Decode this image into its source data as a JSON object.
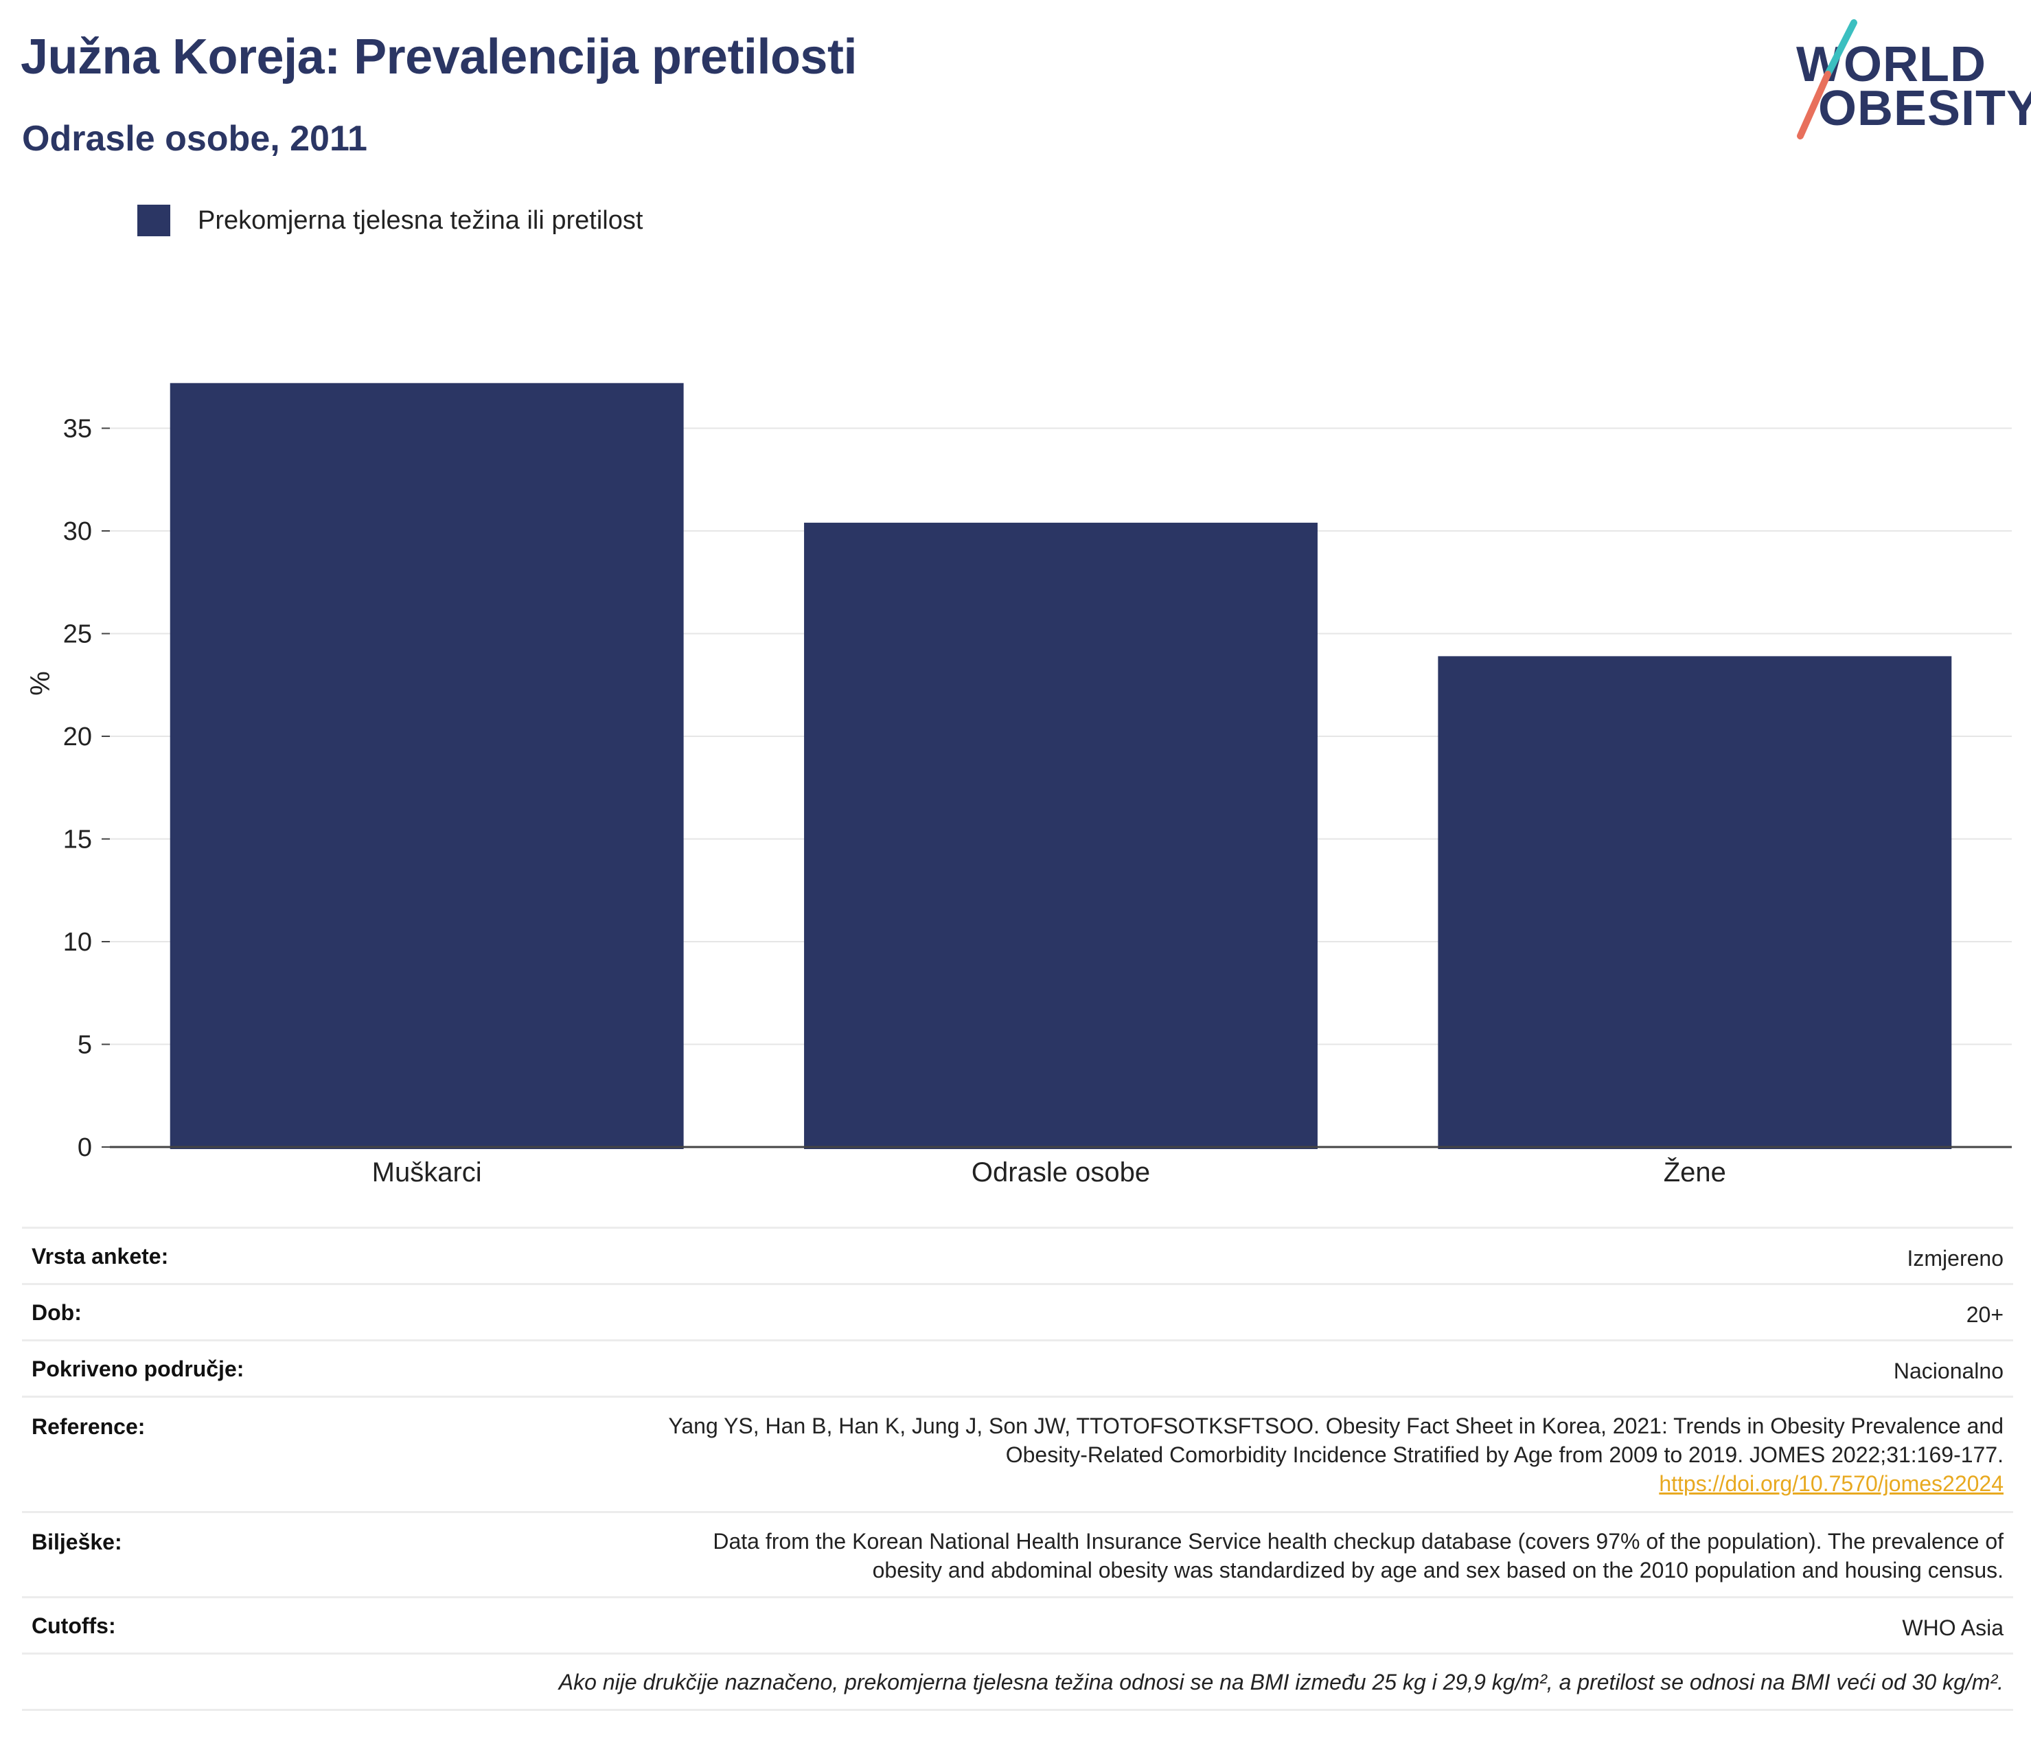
{
  "header": {
    "title": "Južna Koreja: Prevalencija pretilosti",
    "subtitle": "Odrasle osobe, 2011"
  },
  "logo": {
    "line1": "WORLD",
    "line2": "OBESITY"
  },
  "colors": {
    "bar": "#2b3664",
    "title": "#2b3664",
    "link": "#e8a920",
    "logo_slash_top": "#3bbfc0",
    "logo_slash_bottom": "#e8705c",
    "grid": "#e6e6e6"
  },
  "chart_data": {
    "type": "bar",
    "categories": [
      "Muškarci",
      "Odrasle osobe",
      "Žene"
    ],
    "series": [
      {
        "name": "Prekomjerna tjelesna težina ili pretilost",
        "values": [
          37.2,
          30.4,
          23.9
        ]
      }
    ],
    "ylabel": "%",
    "ylim": [
      0,
      40
    ],
    "yticks": [
      0,
      5,
      10,
      15,
      20,
      25,
      30,
      35
    ],
    "grid": true,
    "legend": "top-left"
  },
  "info": {
    "rows": [
      {
        "label": "Vrsta ankete:",
        "value": "Izmjereno"
      },
      {
        "label": "Dob:",
        "value": "20+"
      },
      {
        "label": "Pokriveno područje:",
        "value": "Nacionalno"
      }
    ],
    "reference": {
      "label": "Reference:",
      "line1": "Yang YS, Han B, Han K, Jung J, Son JW, TTOTOFSOTKSFTSOO. Obesity Fact Sheet in Korea, 2021: Trends in Obesity Prevalence and",
      "line2": "Obesity-Related Comorbidity Incidence Stratified by Age from 2009 to 2019. JOMES 2022;31:169-177.",
      "link": "https://doi.org/10.7570/jomes22024"
    },
    "notes": {
      "label": "Bilješke:",
      "line1": "Data from the Korean National Health Insurance Service health checkup database (covers 97% of the population). The prevalence of",
      "line2": "obesity and abdominal obesity was standardized by age and sex based on the 2010 population and housing census."
    },
    "cutoffs": {
      "label": "Cutoffs:",
      "value": "WHO Asia"
    },
    "footnote": "Ako nije drukčije naznačeno, prekomjerna tjelesna težina odnosi se na BMI između 25 kg i 29,9 kg/m², a pretilost se odnosi na BMI veći od 30 kg/m²."
  }
}
